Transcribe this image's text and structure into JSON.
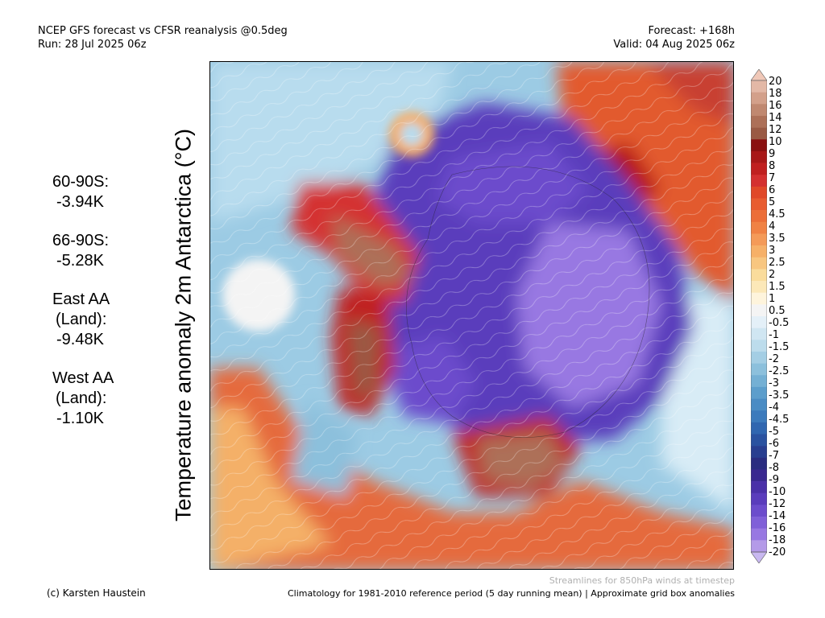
{
  "header": {
    "title": "NCEP GFS forecast vs CFSR reanalysis @0.5deg",
    "run": "Run: 28 Jul 2025 06z",
    "forecast": "Forecast: +168h",
    "valid": "Valid: 04 Aug 2025 06z"
  },
  "map": {
    "title": "Temperature anomaly 2m Antarctica (°C)"
  },
  "stats": [
    {
      "line1": "60-90S:",
      "line2": "-3.94K"
    },
    {
      "line1": "66-90S:",
      "line2": "-5.28K"
    },
    {
      "line1": "East AA",
      "line2": "(Land):",
      "line3": "-9.48K"
    },
    {
      "line1": "West AA",
      "line2": "(Land):",
      "line3": "-1.10K"
    }
  ],
  "colorbar": {
    "labels": [
      "20",
      "18",
      "16",
      "14",
      "12",
      "10",
      "9",
      "8",
      "7",
      "6",
      "5",
      "4.5",
      "4",
      "3.5",
      "3",
      "2.5",
      "2",
      "1.5",
      "1",
      "0.5",
      "-0.5",
      "-1",
      "-1.5",
      "-2",
      "-2.5",
      "-3",
      "-3.5",
      "-4",
      "-4.5",
      "-5",
      "-6",
      "-7",
      "-8",
      "-9",
      "-10",
      "-12",
      "-14",
      "-16",
      "-18",
      "-20"
    ],
    "colors": [
      "#e3b8a6",
      "#d3a08a",
      "#c08870",
      "#ad7058",
      "#9a5a44",
      "#8a1010",
      "#a81818",
      "#c02020",
      "#d43030",
      "#e04828",
      "#e85c30",
      "#ec6e38",
      "#f08244",
      "#f49a58",
      "#f6b068",
      "#f8c680",
      "#fadc9c",
      "#fce8b8",
      "#fef4dc",
      "#f4f4f4",
      "#e4f0f8",
      "#d0e6f2",
      "#bcdcec",
      "#a4cee4",
      "#8cc0dc",
      "#74b0d4",
      "#5c9ecc",
      "#4a8cc4",
      "#3c7abc",
      "#3066b0",
      "#2a52a0",
      "#283e90",
      "#2a2c80",
      "#3a2890",
      "#4a30a8",
      "#5a3cbc",
      "#6c4ccc",
      "#8060d8",
      "#9878e2",
      "#b49ae8"
    ],
    "top_arrow_color": "#f0c8b8",
    "bottom_arrow_color": "#c8b8f0"
  },
  "footer": {
    "credit": "(c) Karsten Haustein",
    "streamlines": "Streamlines for 850hPa winds at timestep",
    "climatology": "Climatology for 1981-2010 reference period (5 day running mean) | Approximate grid box anomalies"
  }
}
